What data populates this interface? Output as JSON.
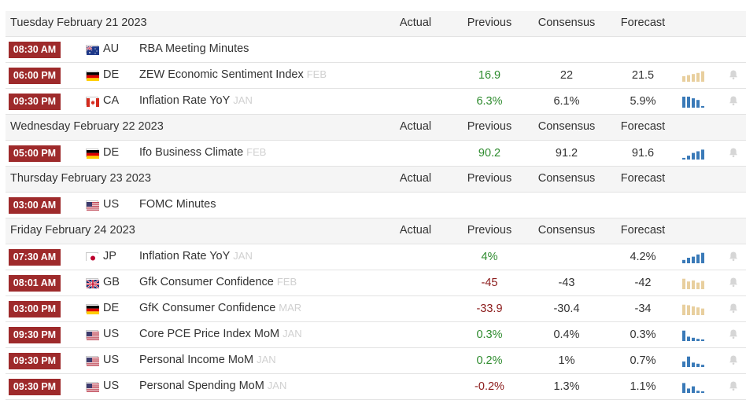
{
  "columns": {
    "actual": "Actual",
    "previous": "Previous",
    "consensus": "Consensus",
    "forecast": "Forecast"
  },
  "colors": {
    "time_badge": "#9e2a2b",
    "positive": "#2e8b2e",
    "negative": "#8b1a1a",
    "spark_blue": "#3a7ab8",
    "spark_tan": "#e8cf9e"
  },
  "days": [
    {
      "date": "Tuesday February 21 2023",
      "events": [
        {
          "time": "08:30 AM",
          "flag": "au",
          "country": "AU",
          "name": "RBA Meeting Minutes",
          "ref": "",
          "actual": "",
          "previous": "",
          "consensus": "",
          "forecast": "",
          "prev_tone": "neu",
          "spark": null
        },
        {
          "time": "06:00 PM",
          "flag": "de",
          "country": "DE",
          "name": "ZEW Economic Sentiment Index",
          "ref": "FEB",
          "actual": "",
          "previous": "16.9",
          "consensus": "22",
          "forecast": "21.5",
          "prev_tone": "pos",
          "spark": {
            "color": "tan",
            "values": [
              0.5,
              0.6,
              0.7,
              0.8,
              0.95
            ]
          }
        },
        {
          "time": "09:30 PM",
          "flag": "ca",
          "country": "CA",
          "name": "Inflation Rate YoY",
          "ref": "JAN",
          "actual": "",
          "previous": "6.3%",
          "consensus": "6.1%",
          "forecast": "5.9%",
          "prev_tone": "pos",
          "spark": {
            "color": "blue",
            "values": [
              1.0,
              1.0,
              0.85,
              0.7,
              0.15
            ]
          }
        }
      ]
    },
    {
      "date": "Wednesday February 22 2023",
      "events": [
        {
          "time": "05:00 PM",
          "flag": "de",
          "country": "DE",
          "name": "Ifo Business Climate",
          "ref": "FEB",
          "actual": "",
          "previous": "90.2",
          "consensus": "91.2",
          "forecast": "91.6",
          "prev_tone": "pos",
          "spark": {
            "color": "blue",
            "values": [
              0.15,
              0.35,
              0.6,
              0.75,
              0.9
            ]
          }
        }
      ]
    },
    {
      "date": "Thursday February 23 2023",
      "events": [
        {
          "time": "03:00 AM",
          "flag": "us",
          "country": "US",
          "name": "FOMC Minutes",
          "ref": "",
          "actual": "",
          "previous": "",
          "consensus": "",
          "forecast": "",
          "prev_tone": "neu",
          "spark": null
        }
      ]
    },
    {
      "date": "Friday February 24 2023",
      "events": [
        {
          "time": "07:30 AM",
          "flag": "jp",
          "country": "JP",
          "name": "Inflation Rate YoY",
          "ref": "JAN",
          "actual": "",
          "previous": "4%",
          "consensus": "",
          "forecast": "4.2%",
          "prev_tone": "pos",
          "spark": {
            "color": "blue",
            "values": [
              0.3,
              0.5,
              0.6,
              0.8,
              0.95
            ]
          }
        },
        {
          "time": "08:01 AM",
          "flag": "gb",
          "country": "GB",
          "name": "Gfk Consumer Confidence",
          "ref": "FEB",
          "actual": "",
          "previous": "-45",
          "consensus": "-43",
          "forecast": "-42",
          "prev_tone": "neg",
          "spark": {
            "color": "tan",
            "values": [
              0.95,
              0.7,
              0.8,
              0.6,
              0.75
            ]
          }
        },
        {
          "time": "03:00 PM",
          "flag": "de",
          "country": "DE",
          "name": "GfK Consumer Confidence",
          "ref": "MAR",
          "actual": "",
          "previous": "-33.9",
          "consensus": "-30.4",
          "forecast": "-34",
          "prev_tone": "neg",
          "spark": {
            "color": "tan",
            "values": [
              0.95,
              0.9,
              0.8,
              0.7,
              0.6
            ]
          }
        },
        {
          "time": "09:30 PM",
          "flag": "us",
          "country": "US",
          "name": "Core PCE Price Index MoM",
          "ref": "JAN",
          "actual": "",
          "previous": "0.3%",
          "consensus": "0.4%",
          "forecast": "0.3%",
          "prev_tone": "pos",
          "spark": {
            "color": "blue",
            "values": [
              0.95,
              0.4,
              0.3,
              0.2,
              0.15
            ]
          }
        },
        {
          "time": "09:30 PM",
          "flag": "us",
          "country": "US",
          "name": "Personal Income MoM",
          "ref": "JAN",
          "actual": "",
          "previous": "0.2%",
          "consensus": "1%",
          "forecast": "0.7%",
          "prev_tone": "pos",
          "spark": {
            "color": "blue",
            "values": [
              0.5,
              0.95,
              0.4,
              0.3,
              0.2
            ]
          }
        },
        {
          "time": "09:30 PM",
          "flag": "us",
          "country": "US",
          "name": "Personal Spending MoM",
          "ref": "JAN",
          "actual": "",
          "previous": "-0.2%",
          "consensus": "1.3%",
          "forecast": "1.1%",
          "prev_tone": "neg",
          "spark": {
            "color": "blue",
            "values": [
              0.9,
              0.4,
              0.6,
              0.2,
              0.1
            ]
          }
        }
      ]
    }
  ]
}
